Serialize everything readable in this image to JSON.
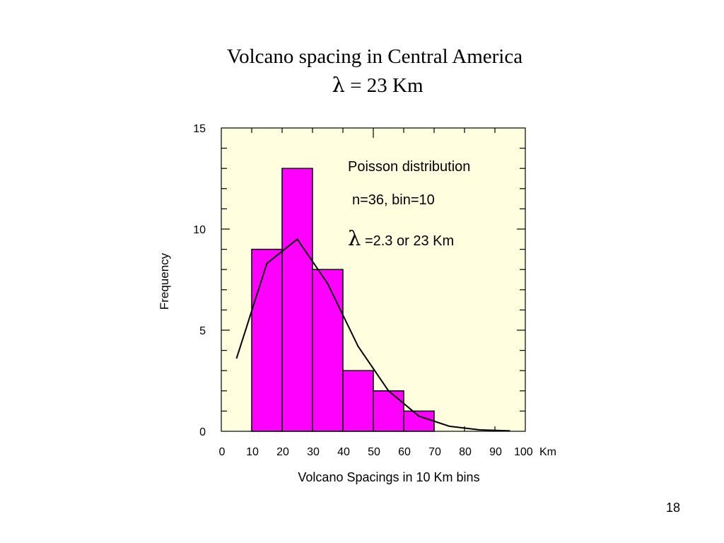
{
  "slide": {
    "title": "Volcano spacing in Central America",
    "subtitle_symbol": "λ",
    "subtitle_text": " = 23 Km",
    "page_number": "18"
  },
  "colors": {
    "plot_background": "#ffffe0",
    "bar_fill": "#ff00ff",
    "bar_stroke": "#000000",
    "curve": "#000000"
  },
  "chart_data": {
    "type": "bar",
    "xlabel": "Volcano Spacings in 10 Km bins",
    "ylabel": "Frequency",
    "x_unit": "Km",
    "xlim": [
      0,
      100
    ],
    "ylim": [
      0,
      15
    ],
    "x_ticks": [
      0,
      10,
      20,
      30,
      40,
      50,
      60,
      70,
      80,
      90,
      100
    ],
    "y_ticks": [
      0,
      5,
      10,
      15
    ],
    "grid": false,
    "bars": [
      {
        "x0": 10,
        "x1": 20,
        "value": 9
      },
      {
        "x0": 20,
        "x1": 30,
        "value": 13
      },
      {
        "x0": 30,
        "x1": 40,
        "value": 8
      },
      {
        "x0": 40,
        "x1": 50,
        "value": 3
      },
      {
        "x0": 50,
        "x1": 60,
        "value": 2
      },
      {
        "x0": 60,
        "x1": 70,
        "value": 1
      }
    ],
    "poisson_curve": {
      "x": [
        5,
        15,
        25,
        35,
        45,
        55,
        65,
        75,
        85,
        95
      ],
      "y": [
        3.6,
        8.3,
        9.5,
        7.3,
        4.2,
        2.0,
        0.75,
        0.25,
        0.07,
        0.02
      ]
    },
    "annotations": {
      "line1": "Poisson distribution",
      "line2": "n=36, bin=10",
      "line3_symbol": "λ",
      "line3_text": " =2.3 or 23 Km"
    }
  }
}
